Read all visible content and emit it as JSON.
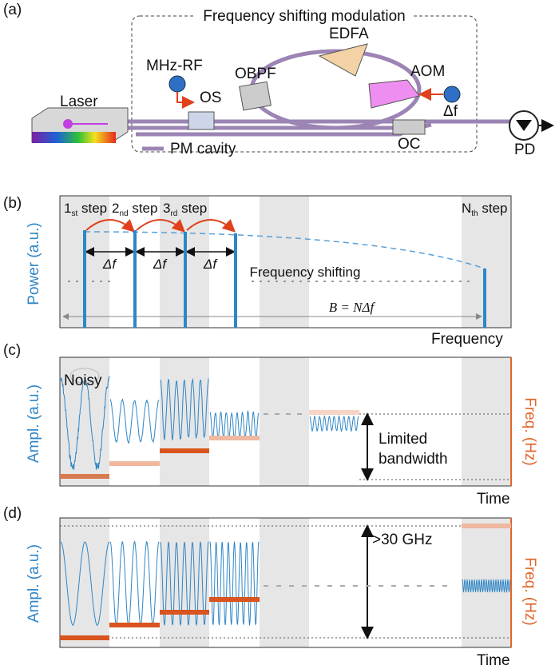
{
  "panel_a": {
    "label": "(a)",
    "title": "Frequency shifting modulation",
    "edfa": "EDFA",
    "mhz_rf": "MHz-RF",
    "obpf": "OBPF",
    "aom": "AOM",
    "laser": "Laser",
    "os": "OS",
    "delta_f": "Δf",
    "legend": "PM cavity",
    "oc": "OC",
    "pd": "PD"
  },
  "panel_b": {
    "label": "(b)",
    "steps": [
      {
        "base": "1",
        "sub": "st",
        "rest": " step"
      },
      {
        "base": "2",
        "sub": "nd",
        "rest": " step"
      },
      {
        "base": "3",
        "sub": "rd",
        "rest": " step"
      },
      {
        "base": "N",
        "sub": "th",
        "rest": " step"
      }
    ],
    "delta_f_labels": [
      "Δf",
      "Δf",
      "Δf"
    ],
    "annotation": "Frequency shifting",
    "bandwidth": "B = NΔf",
    "y_label": "Power (a.u.)",
    "x_label": "Frequency"
  },
  "panel_c": {
    "label": "(c)",
    "noisy": "Noisy",
    "y_label": "Ampl. (a.u.)",
    "y2_label": "Freq. (Hz)",
    "annotation": [
      "Limited",
      "bandwidth"
    ],
    "x_label": "Time"
  },
  "panel_d": {
    "label": "(d)",
    "annotation": ">30 GHz",
    "y_label": "Ampl. (a.u.)",
    "y2_label": "Freq. (Hz)",
    "x_label": "Time"
  }
}
